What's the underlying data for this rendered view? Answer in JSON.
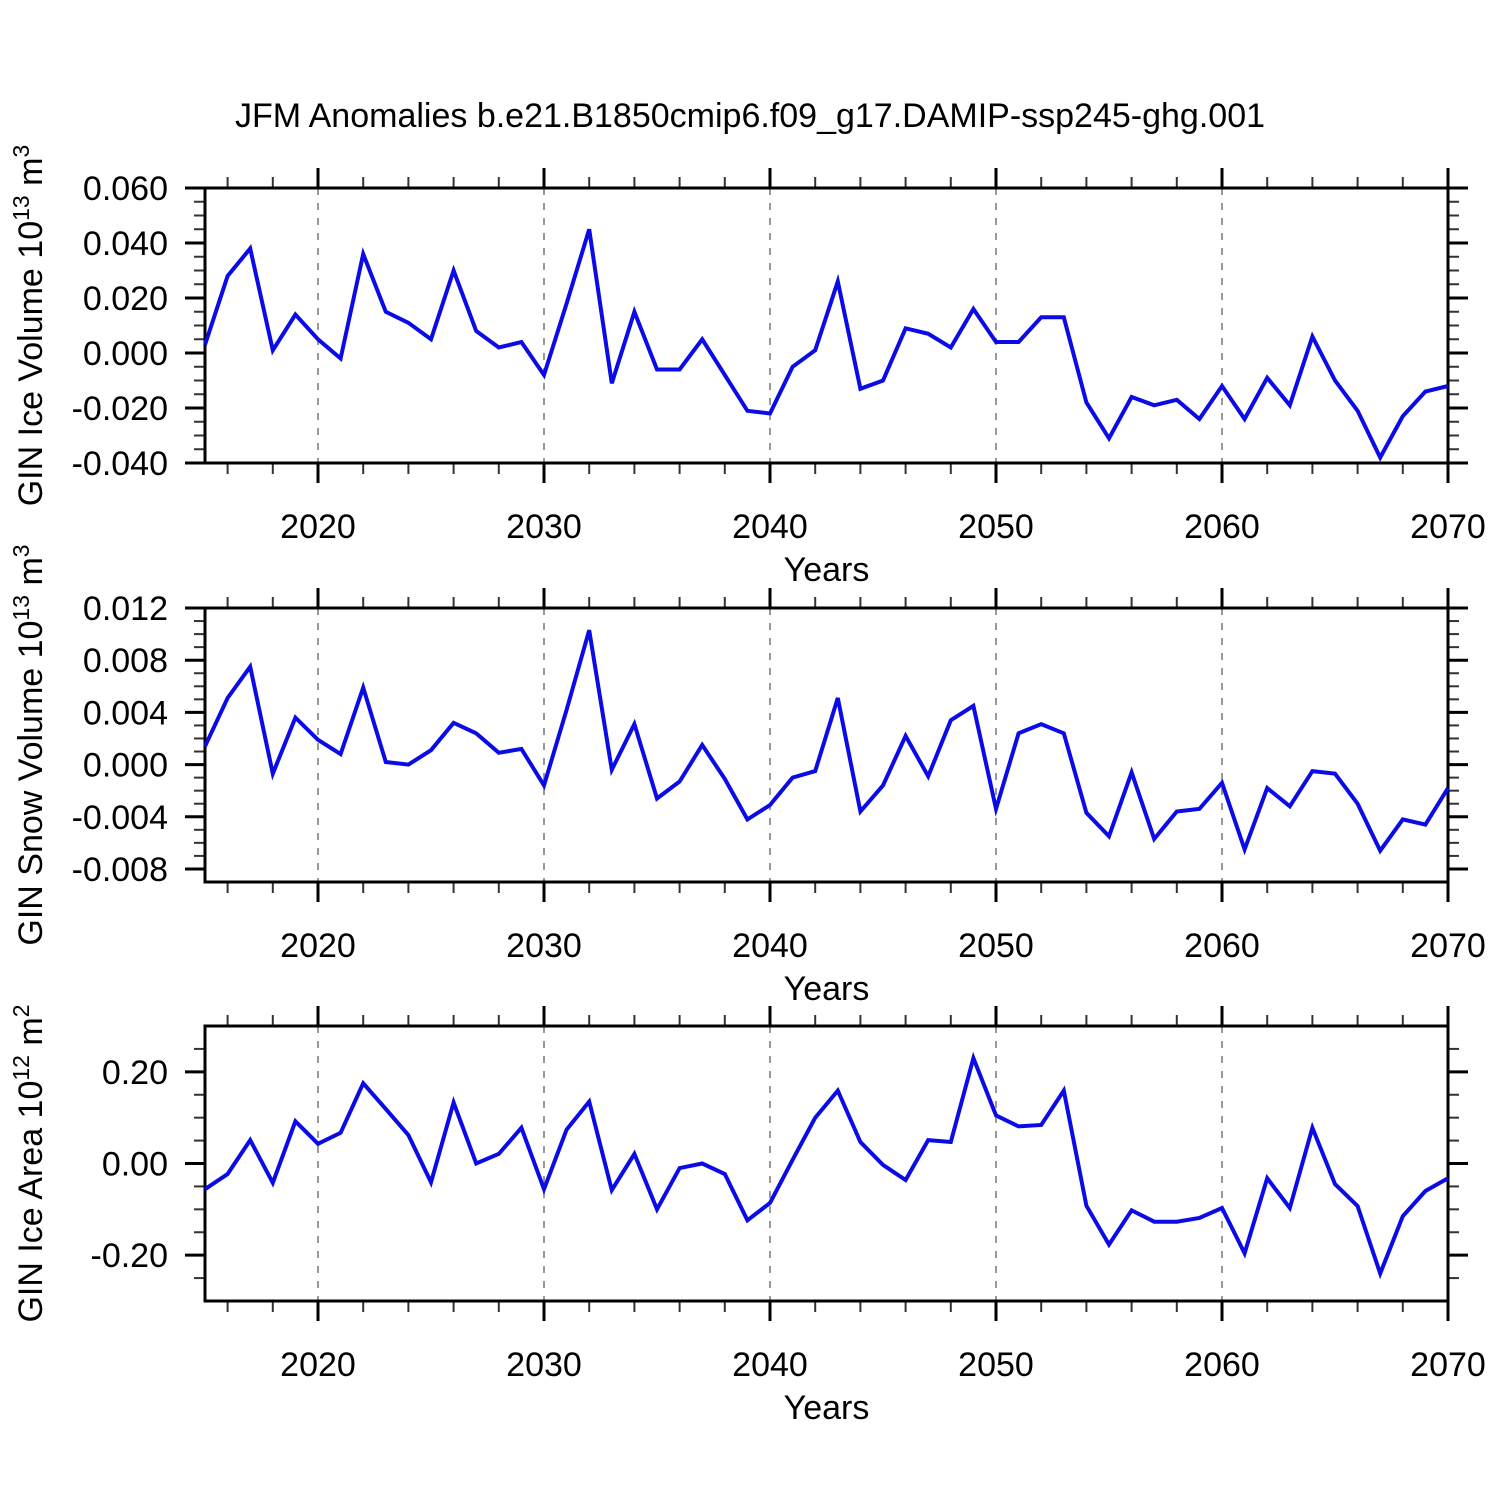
{
  "title": "JFM Anomalies b.e21.B1850cmip6.f09_g17.DAMIP-ssp245-ghg.001",
  "figure": {
    "line_color": "#0b0be8",
    "grid_color": "#999999",
    "axis_color": "#000000",
    "minor_tick_color": "#333333",
    "background": "#ffffff"
  },
  "chart_data": [
    {
      "type": "line",
      "id": "ice-volume",
      "name": "GIN Ice Volume",
      "xlabel": "Years",
      "ylabel_parts": [
        {
          "text": "GIN Ice Volume 10",
          "sup": false
        },
        {
          "text": "13",
          "sup": true
        },
        {
          "text": " m",
          "sup": false
        },
        {
          "text": "3",
          "sup": true
        }
      ],
      "xlim": [
        2015,
        2070
      ],
      "ylim": [
        -0.04,
        0.06
      ],
      "xticks_major": [
        2020,
        2030,
        2040,
        2050,
        2060,
        2070
      ],
      "xtick_minor_step": 2,
      "grid_x": [
        2020,
        2030,
        2040,
        2050,
        2060
      ],
      "grid": "vertical-dashed",
      "yticks_major": [
        0.06,
        0.04,
        0.02,
        0.0,
        -0.02,
        -0.04
      ],
      "ytick_labels": [
        "0.060",
        "0.040",
        "0.020",
        "0.000",
        "-0.020",
        "-0.040"
      ],
      "ytick_minor_step": 0.005,
      "x": [
        2015,
        2016,
        2017,
        2018,
        2019,
        2020,
        2021,
        2022,
        2023,
        2024,
        2025,
        2026,
        2027,
        2028,
        2029,
        2030,
        2031,
        2032,
        2033,
        2034,
        2035,
        2036,
        2037,
        2038,
        2039,
        2040,
        2041,
        2042,
        2043,
        2044,
        2045,
        2046,
        2047,
        2048,
        2049,
        2050,
        2051,
        2052,
        2053,
        2054,
        2055,
        2056,
        2057,
        2058,
        2059,
        2060,
        2061,
        2062,
        2063,
        2064,
        2065,
        2066,
        2067,
        2068,
        2069,
        2070
      ],
      "values": [
        0.003,
        0.028,
        0.038,
        0.001,
        0.014,
        0.005,
        -0.002,
        0.036,
        0.015,
        0.011,
        0.005,
        0.03,
        0.008,
        0.002,
        0.004,
        -0.008,
        0.018,
        0.045,
        -0.011,
        0.015,
        -0.006,
        -0.006,
        0.005,
        -0.008,
        -0.021,
        -0.022,
        -0.005,
        0.001,
        0.026,
        -0.013,
        -0.01,
        0.009,
        0.007,
        0.002,
        0.016,
        0.004,
        0.004,
        0.013,
        0.013,
        -0.018,
        -0.031,
        -0.016,
        -0.019,
        -0.017,
        -0.024,
        -0.012,
        -0.024,
        -0.009,
        -0.019,
        0.006,
        -0.01,
        -0.021,
        -0.038,
        -0.023,
        -0.014,
        -0.012
      ]
    },
    {
      "type": "line",
      "id": "snow-volume",
      "name": "GIN Snow Volume",
      "xlabel": "Years",
      "ylabel_parts": [
        {
          "text": "GIN Snow Volume 10",
          "sup": false
        },
        {
          "text": "13",
          "sup": true
        },
        {
          "text": " m",
          "sup": false
        },
        {
          "text": "3",
          "sup": true
        }
      ],
      "xlim": [
        2015,
        2070
      ],
      "ylim": [
        -0.009,
        0.012
      ],
      "xticks_major": [
        2020,
        2030,
        2040,
        2050,
        2060,
        2070
      ],
      "xtick_minor_step": 2,
      "grid_x": [
        2020,
        2030,
        2040,
        2050,
        2060
      ],
      "grid": "vertical-dashed",
      "yticks_major": [
        0.012,
        0.008,
        0.004,
        0.0,
        -0.004,
        -0.008
      ],
      "ytick_labels": [
        "0.012",
        "0.008",
        "0.004",
        "0.000",
        "-0.004",
        "-0.008"
      ],
      "ytick_minor_step": 0.001,
      "x": [
        2015,
        2016,
        2017,
        2018,
        2019,
        2020,
        2021,
        2022,
        2023,
        2024,
        2025,
        2026,
        2027,
        2028,
        2029,
        2030,
        2031,
        2032,
        2033,
        2034,
        2035,
        2036,
        2037,
        2038,
        2039,
        2040,
        2041,
        2042,
        2043,
        2044,
        2045,
        2046,
        2047,
        2048,
        2049,
        2050,
        2051,
        2052,
        2053,
        2054,
        2055,
        2056,
        2057,
        2058,
        2059,
        2060,
        2061,
        2062,
        2063,
        2064,
        2065,
        2066,
        2067,
        2068,
        2069,
        2070
      ],
      "values": [
        0.0014,
        0.0051,
        0.0075,
        -0.0007,
        0.0036,
        0.0019,
        0.0008,
        0.0059,
        0.0002,
        0.0,
        0.0011,
        0.0032,
        0.0024,
        0.0009,
        0.0012,
        -0.0016,
        0.0042,
        0.0103,
        -0.0004,
        0.0031,
        -0.0026,
        -0.0013,
        0.0015,
        -0.0011,
        -0.0042,
        -0.0031,
        -0.001,
        -0.0005,
        0.0051,
        -0.0036,
        -0.0016,
        0.0022,
        -0.0009,
        0.0034,
        0.0045,
        -0.0034,
        0.0024,
        0.0031,
        0.0024,
        -0.0037,
        -0.0055,
        -0.0006,
        -0.0057,
        -0.0036,
        -0.0034,
        -0.0014,
        -0.0065,
        -0.0018,
        -0.0032,
        -0.0005,
        -0.0007,
        -0.003,
        -0.0066,
        -0.0042,
        -0.0046,
        -0.0018
      ]
    },
    {
      "type": "line",
      "id": "ice-area",
      "name": "GIN Ice Area",
      "xlabel": "Years",
      "ylabel_parts": [
        {
          "text": "GIN Ice Area 10",
          "sup": false
        },
        {
          "text": "12",
          "sup": true
        },
        {
          "text": " m",
          "sup": false
        },
        {
          "text": "2",
          "sup": true
        }
      ],
      "xlim": [
        2015,
        2070
      ],
      "ylim": [
        -0.3,
        0.3
      ],
      "xticks_major": [
        2020,
        2030,
        2040,
        2050,
        2060,
        2070
      ],
      "xtick_minor_step": 2,
      "grid_x": [
        2020,
        2030,
        2040,
        2050,
        2060
      ],
      "grid": "vertical-dashed",
      "yticks_major": [
        0.2,
        0.0,
        -0.2
      ],
      "ytick_labels": [
        "0.20",
        "0.00",
        "-0.20"
      ],
      "ytick_minor_step": 0.05,
      "x": [
        2015,
        2016,
        2017,
        2018,
        2019,
        2020,
        2021,
        2022,
        2023,
        2024,
        2025,
        2026,
        2027,
        2028,
        2029,
        2030,
        2031,
        2032,
        2033,
        2034,
        2035,
        2036,
        2037,
        2038,
        2039,
        2040,
        2041,
        2042,
        2043,
        2044,
        2045,
        2046,
        2047,
        2048,
        2049,
        2050,
        2051,
        2052,
        2053,
        2054,
        2055,
        2056,
        2057,
        2058,
        2059,
        2060,
        2061,
        2062,
        2063,
        2064,
        2065,
        2066,
        2067,
        2068,
        2069,
        2070
      ],
      "values": [
        -0.056,
        -0.023,
        0.051,
        -0.042,
        0.092,
        0.043,
        0.067,
        0.175,
        0.119,
        0.062,
        -0.041,
        0.133,
        0.0,
        0.021,
        0.078,
        -0.056,
        0.074,
        0.135,
        -0.058,
        0.021,
        -0.1,
        -0.01,
        0.0,
        -0.023,
        -0.124,
        -0.086,
        0.008,
        0.1,
        0.159,
        0.047,
        -0.003,
        -0.036,
        0.051,
        0.047,
        0.23,
        0.105,
        0.081,
        0.084,
        0.159,
        -0.092,
        -0.177,
        -0.102,
        -0.127,
        -0.127,
        -0.119,
        -0.097,
        -0.196,
        -0.032,
        -0.097,
        0.078,
        -0.045,
        -0.093,
        -0.24,
        -0.115,
        -0.06,
        -0.032
      ]
    }
  ]
}
